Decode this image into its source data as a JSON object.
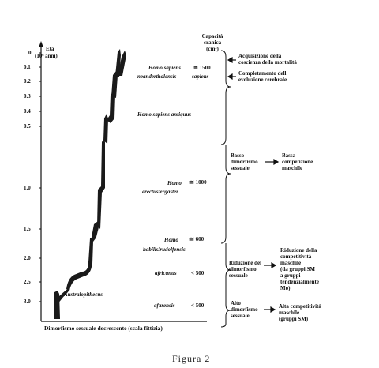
{
  "axis": {
    "title_line1": "Età",
    "title_line2": "(10⁶ anni)",
    "ticks": [
      "0",
      "0.1",
      "0.2",
      "0.3",
      "0.4",
      "0.5",
      "1.0",
      "1.5",
      "2.0",
      "2.5",
      "3.0"
    ],
    "xlabel": "Dimorfismo sessuale decrescente (scala fittizia)"
  },
  "capacity_header": {
    "line1": "Capacità",
    "line2": "cranica",
    "line3": "(cm³)"
  },
  "species": {
    "homo_sapiens": "Homo sapiens",
    "sapiens_cap": "≅ 1500",
    "neanderthalensis": "neanderthalensis",
    "sapiens": "sapiens",
    "sapiens_antiquus": "Homo sapiens antiquus",
    "homo_erectus_1": "Homo",
    "homo_erectus_2": "erectus/ergaster",
    "erectus_cap": "≅ 1000",
    "homo_habilis_1": "Homo",
    "homo_habilis_2": "habilis/rudolfensis",
    "habilis_cap": "≅ 600",
    "africanus": "africanus",
    "africanus_cap": "< 500",
    "afarensis": "afarensis",
    "afarensis_cap": "< 500",
    "australopithecus": "Australopithecus"
  },
  "right_labels": {
    "mortality_line1": "Acquisizione della",
    "mortality_line2": "coscienza della mortalità",
    "evolution_line1": "Completamento dell'",
    "evolution_line2": "evoluzione cerebrale",
    "low_dim_1": "Basso",
    "low_dim_2": "dimorfismo",
    "low_dim_3": "sessuale",
    "low_comp_1": "Bassa",
    "low_comp_2": "competizione",
    "low_comp_3": "maschile",
    "red_dim_1": "Riduzione del",
    "red_dim_2": "dimorfismo",
    "red_dim_3": "sessuale",
    "red_comp_1": "Riduzione della",
    "red_comp_2": "competitività",
    "red_comp_3": "maschile",
    "red_comp_4": "(da gruppi SM",
    "red_comp_5": "a gruppi",
    "red_comp_6": "tendenzialmente",
    "red_comp_7": "Mo)",
    "high_dim_1": "Alto",
    "high_dim_2": "dimorfismo",
    "high_dim_3": "sessuale",
    "high_comp_1": "Alta competitività",
    "high_comp_2": "maschile",
    "high_comp_3": "(gruppi SM)"
  },
  "caption": "Figura 2"
}
